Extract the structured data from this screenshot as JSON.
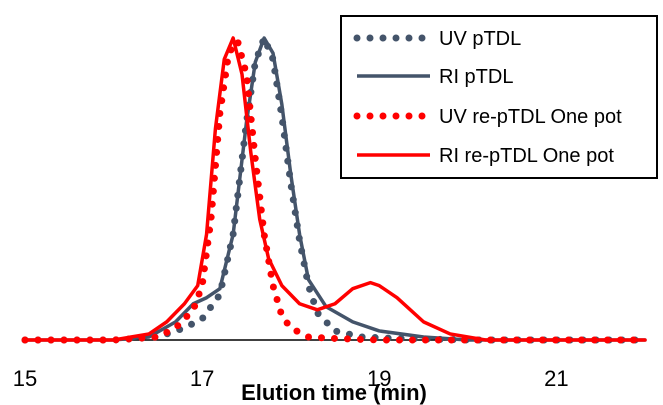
{
  "chart_data": {
    "type": "line",
    "title": "",
    "xlabel": "Elution time (min)",
    "ylabel": "",
    "xlim": [
      15,
      22
    ],
    "ylim": [
      0,
      1.0
    ],
    "x_ticks": [
      15,
      17,
      19,
      21
    ],
    "x_tick_labels": [
      "15",
      "17",
      "19",
      "21"
    ],
    "grid": false,
    "legend_position": "top-right",
    "series": [
      {
        "name": "UV pTDL",
        "color": "#44546A",
        "style": "dotted",
        "x": [
          15.0,
          16.0,
          16.5,
          16.8,
          17.0,
          17.2,
          17.35,
          17.5,
          17.6,
          17.7,
          17.8,
          17.9,
          18.0,
          18.1,
          18.2,
          18.3,
          18.5,
          18.8,
          19.2,
          20.0,
          22.0
        ],
        "y": [
          0.0,
          0.0,
          0.01,
          0.04,
          0.07,
          0.15,
          0.35,
          0.72,
          0.92,
          1.0,
          0.93,
          0.74,
          0.52,
          0.33,
          0.18,
          0.09,
          0.03,
          0.01,
          0.005,
          0.0,
          0.0
        ]
      },
      {
        "name": "RI pTDL",
        "color": "#44546A",
        "style": "solid",
        "x": [
          15.0,
          16.0,
          16.4,
          16.7,
          16.9,
          17.05,
          17.2,
          17.35,
          17.5,
          17.6,
          17.7,
          17.8,
          17.9,
          18.0,
          18.1,
          18.2,
          18.4,
          18.7,
          19.0,
          19.5,
          20.0,
          22.0
        ],
        "y": [
          0.0,
          0.0,
          0.01,
          0.06,
          0.12,
          0.14,
          0.17,
          0.35,
          0.72,
          0.92,
          1.0,
          0.95,
          0.78,
          0.55,
          0.35,
          0.2,
          0.11,
          0.06,
          0.03,
          0.01,
          0.0,
          0.0
        ]
      },
      {
        "name": "UV re-pTDL One pot",
        "color": "#FF0000",
        "style": "dotted",
        "x": [
          15.0,
          16.0,
          16.5,
          16.7,
          16.9,
          17.0,
          17.1,
          17.2,
          17.3,
          17.4,
          17.5,
          17.6,
          17.7,
          17.8,
          17.9,
          18.0,
          18.2,
          18.5,
          19.0,
          22.0
        ],
        "y": [
          0.0,
          0.0,
          0.01,
          0.04,
          0.1,
          0.18,
          0.4,
          0.75,
          0.95,
          0.99,
          0.88,
          0.6,
          0.35,
          0.18,
          0.08,
          0.04,
          0.01,
          0.005,
          0.0,
          0.0
        ]
      },
      {
        "name": "RI re-pTDL One pot",
        "color": "#FF0000",
        "style": "solid",
        "x": [
          15.0,
          16.0,
          16.4,
          16.6,
          16.8,
          16.95,
          17.05,
          17.15,
          17.25,
          17.35,
          17.45,
          17.55,
          17.65,
          17.75,
          17.9,
          18.1,
          18.3,
          18.5,
          18.7,
          18.9,
          19.0,
          19.2,
          19.5,
          19.8,
          20.2,
          22.0
        ],
        "y": [
          0.0,
          0.0,
          0.02,
          0.06,
          0.12,
          0.18,
          0.35,
          0.7,
          0.93,
          1.0,
          0.88,
          0.62,
          0.4,
          0.27,
          0.18,
          0.12,
          0.1,
          0.12,
          0.17,
          0.19,
          0.18,
          0.14,
          0.06,
          0.02,
          0.0,
          0.0
        ]
      }
    ]
  }
}
